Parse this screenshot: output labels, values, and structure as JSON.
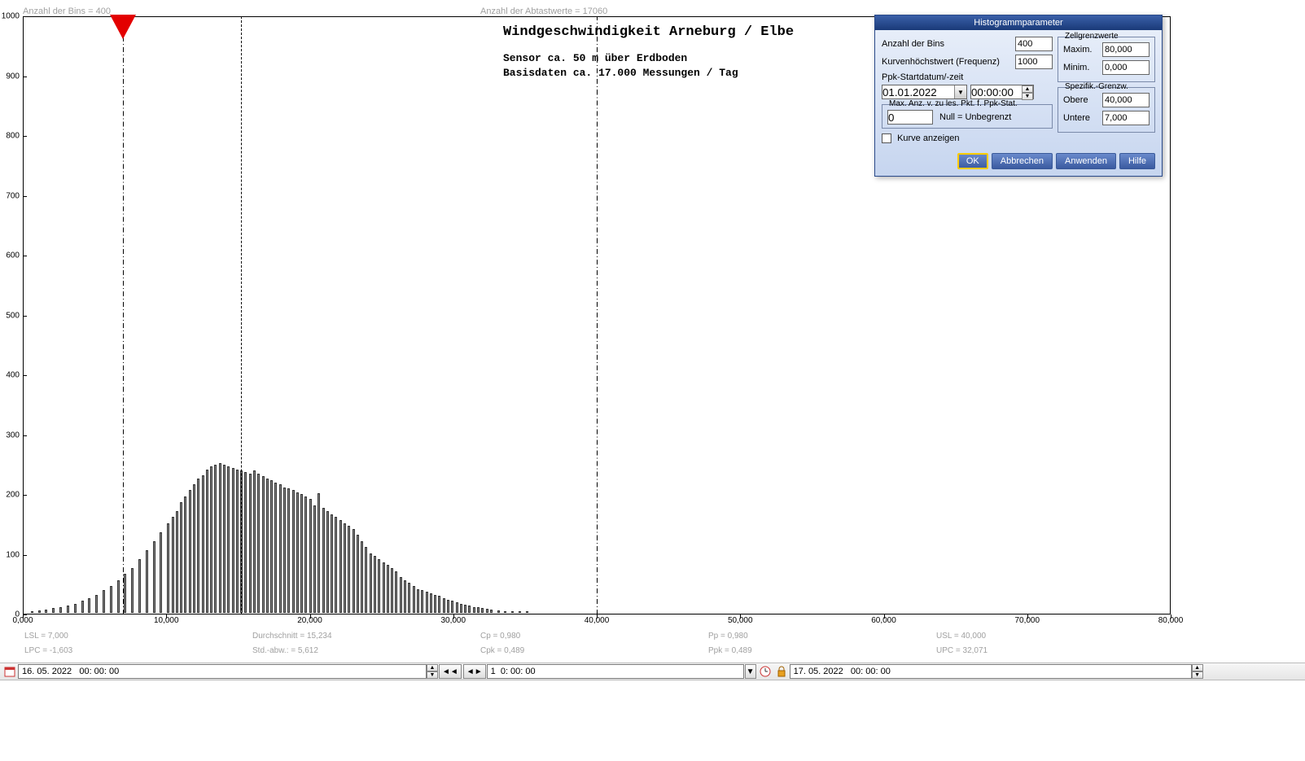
{
  "chart": {
    "type": "histogram",
    "header_left": "Anzahl der Bins =   400",
    "header_right": "Anzahl der Abtastwerte = 17060",
    "title": "Windgeschwindigkeit  Arneburg / Elbe",
    "subtitle1": "Sensor ca. 50 m über Erdboden",
    "subtitle2": "Basisdaten ca. 17.000 Messungen / Tag",
    "xlim": [
      0,
      80
    ],
    "ylim": [
      0,
      1000
    ],
    "xtick_step": 10,
    "ytick_step": 100,
    "xtick_labels": [
      "0,000",
      "10,000",
      "20,000",
      "30,000",
      "40,000",
      "50,000",
      "60,000",
      "70,000",
      "80,000"
    ],
    "ytick_labels": [
      "0",
      "100",
      "200",
      "300",
      "400",
      "500",
      "600",
      "700",
      "800",
      "900",
      "1000"
    ],
    "bar_color": "#888888",
    "bar_border": "#333333",
    "background": "#ffffff",
    "axis_color": "#000000",
    "marker_x": 7.0,
    "marker_color": "#e30000",
    "vlines": [
      {
        "x": 7.0,
        "style": "dashdotdot"
      },
      {
        "x": 15.2,
        "style": "dash"
      },
      {
        "x": 40.0,
        "style": "dashdotdot"
      }
    ],
    "bars_x": [
      0.5,
      1,
      1.5,
      2,
      2.5,
      3,
      3.5,
      4,
      4.5,
      5,
      5.5,
      6,
      6.5,
      7,
      7.5,
      8,
      8.5,
      9,
      9.5,
      10,
      10.3,
      10.6,
      10.9,
      11.2,
      11.5,
      11.8,
      12.1,
      12.4,
      12.7,
      13,
      13.3,
      13.6,
      13.9,
      14.2,
      14.5,
      14.8,
      15.1,
      15.4,
      15.7,
      16,
      16.3,
      16.6,
      16.9,
      17.2,
      17.5,
      17.8,
      18.1,
      18.4,
      18.7,
      19,
      19.3,
      19.6,
      19.9,
      20.2,
      20.5,
      20.8,
      21.1,
      21.4,
      21.7,
      22,
      22.3,
      22.6,
      22.9,
      23.2,
      23.5,
      23.8,
      24.1,
      24.4,
      24.7,
      25,
      25.3,
      25.6,
      25.9,
      26.2,
      26.5,
      26.8,
      27.1,
      27.4,
      27.7,
      28,
      28.3,
      28.6,
      28.9,
      29.2,
      29.5,
      29.8,
      30.1,
      30.4,
      30.7,
      31,
      31.3,
      31.6,
      31.9,
      32.2,
      32.5,
      33,
      33.5,
      34,
      34.5,
      35
    ],
    "bars_y": [
      2,
      4,
      5,
      8,
      10,
      12,
      15,
      20,
      25,
      30,
      38,
      45,
      55,
      65,
      75,
      90,
      105,
      120,
      135,
      150,
      160,
      170,
      185,
      195,
      205,
      215,
      225,
      230,
      240,
      245,
      248,
      250,
      247,
      245,
      242,
      240,
      238,
      235,
      232,
      238,
      232,
      228,
      225,
      222,
      218,
      215,
      210,
      208,
      205,
      202,
      198,
      195,
      190,
      180,
      200,
      175,
      170,
      165,
      160,
      155,
      150,
      145,
      140,
      130,
      120,
      110,
      100,
      95,
      90,
      85,
      80,
      75,
      70,
      60,
      55,
      50,
      45,
      40,
      38,
      35,
      32,
      30,
      28,
      25,
      22,
      20,
      18,
      15,
      13,
      12,
      10,
      9,
      8,
      7,
      6,
      4,
      3,
      2,
      2,
      1
    ],
    "stats": {
      "lsl": "LSL = 7,000",
      "lpc": "LPC = -1,603",
      "mean": "Durchschnitt  = 15,234",
      "stdev": "Std.-abw.: = 5,612",
      "cp": "Cp  = 0,980",
      "cpk": "Cpk = 0,489",
      "pp": "Pp  = 0,980",
      "ppk": "Ppk = 0,489",
      "usl": "USL = 40,000",
      "upc": "UPC = 32,071"
    }
  },
  "toolbar": {
    "date_from": "16. 05. 2022   00: 00: 00",
    "range": "1  0: 00: 00",
    "date_to": "17. 05. 2022   00: 00: 00"
  },
  "dialog": {
    "title": "Histogrammparameter",
    "bins_label": "Anzahl der Bins",
    "bins_value": "400",
    "maxfreq_label": "Kurvenhöchstwert (Frequenz)",
    "maxfreq_value": "1000",
    "ppk_label": "Ppk-Startdatum/-zeit",
    "ppk_date": "01.01.2022",
    "ppk_time": "00:00:00",
    "maxpts_legend": "Max. Anz. v. zu les. Pkt. f. Ppk-Stat.",
    "maxpts_value": "0",
    "maxpts_hint": "Null = Unbegrenzt",
    "show_curve_label": "Kurve anzeigen",
    "cell_limits_legend": "Zellgrenzwerte",
    "cell_max_label": "Maxim.",
    "cell_max_value": "80,000",
    "cell_min_label": "Minim.",
    "cell_min_value": "0,000",
    "spec_limits_legend": "Spezifik.-Grenzw.",
    "spec_upper_label": "Obere",
    "spec_upper_value": "40,000",
    "spec_lower_label": "Untere",
    "spec_lower_value": "7,000",
    "btn_ok": "OK",
    "btn_cancel": "Abbrechen",
    "btn_apply": "Anwenden",
    "btn_help": "Hilfe"
  }
}
